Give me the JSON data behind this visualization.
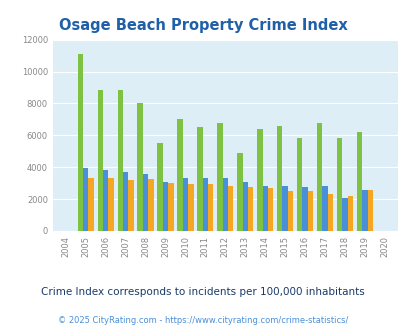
{
  "title": "Osage Beach Property Crime Index",
  "years": [
    2004,
    2005,
    2006,
    2007,
    2008,
    2009,
    2010,
    2011,
    2012,
    2013,
    2014,
    2015,
    2016,
    2017,
    2018,
    2019,
    2020
  ],
  "osage_beach": [
    0,
    11100,
    8850,
    8850,
    8000,
    5500,
    7050,
    6550,
    6800,
    4900,
    6400,
    6600,
    5800,
    6750,
    5800,
    6200,
    0
  ],
  "missouri": [
    0,
    3950,
    3850,
    3700,
    3600,
    3100,
    3300,
    3300,
    3300,
    3100,
    2850,
    2800,
    2750,
    2800,
    2100,
    2600,
    0
  ],
  "national": [
    0,
    3350,
    3300,
    3200,
    3250,
    3000,
    2950,
    2950,
    2850,
    2750,
    2700,
    2500,
    2500,
    2350,
    2200,
    2600,
    0
  ],
  "osage_color": "#7dc242",
  "missouri_color": "#4a90d9",
  "national_color": "#f5a623",
  "bg_color": "#deeef7",
  "ylim": [
    0,
    12000
  ],
  "yticks": [
    0,
    2000,
    4000,
    6000,
    8000,
    10000,
    12000
  ],
  "subtitle": "Crime Index corresponds to incidents per 100,000 inhabitants",
  "footer": "© 2025 CityRating.com - https://www.cityrating.com/crime-statistics/",
  "title_color": "#2060a8",
  "subtitle_color": "#1a3a6a",
  "footer_color": "#4a90d9",
  "bar_width": 0.27
}
